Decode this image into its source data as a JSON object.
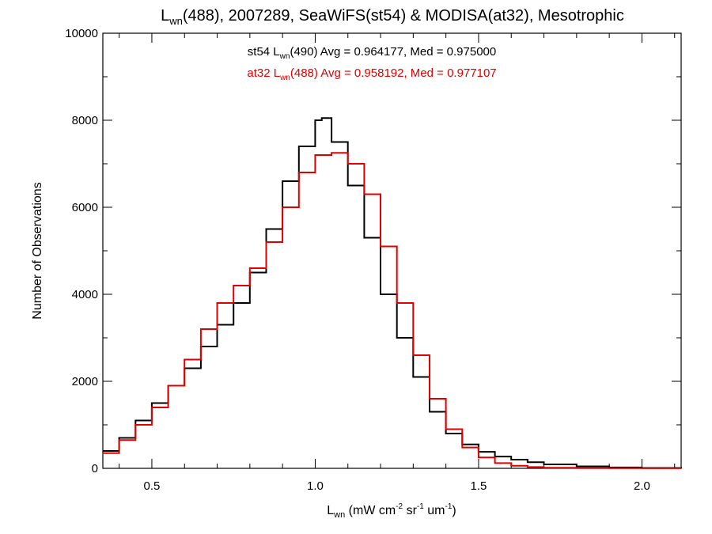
{
  "chart_data": {
    "type": "line",
    "title": {
      "main": "L",
      "sub": "wn",
      "rest": "(488), 2007289, SeaWiFS(st54) & MODISA(at32), Mesotrophic"
    },
    "xlabel": {
      "main": "L",
      "sub": "wn",
      "p1": " (mW cm",
      "sup1": "-2",
      "p2": " sr",
      "sup2": "-1",
      "p3": " um",
      "sup3": "-1",
      "p4": ")"
    },
    "ylabel": "Number of Observations",
    "xlim": [
      0.35,
      2.12
    ],
    "ylim": [
      0,
      10000
    ],
    "x_ticks": [
      {
        "value": 0.5,
        "label": "0.5"
      },
      {
        "value": 1.0,
        "label": "1.0"
      },
      {
        "value": 1.5,
        "label": "1.5"
      },
      {
        "value": 2.0,
        "label": "2.0"
      }
    ],
    "y_ticks": [
      {
        "value": 0,
        "label": "0"
      },
      {
        "value": 2000,
        "label": "2000"
      },
      {
        "value": 4000,
        "label": "4000"
      },
      {
        "value": 6000,
        "label": "6000"
      },
      {
        "value": 8000,
        "label": "8000"
      },
      {
        "value": 10000,
        "label": "10000"
      }
    ],
    "annotations": [
      {
        "pre": "st54 L",
        "sub": "wn",
        "post": "(490) Avg = 0.964177, Med = 0.975000",
        "color": "#000000"
      },
      {
        "pre": "at32 L",
        "sub": "wn",
        "post": "(488) Avg = 0.958192, Med = 0.977107",
        "color": "#e00000"
      }
    ],
    "series": [
      {
        "color": "#000000",
        "x": [
          0.35,
          0.4,
          0.45,
          0.5,
          0.55,
          0.6,
          0.65,
          0.7,
          0.75,
          0.8,
          0.85,
          0.9,
          0.95,
          1.0,
          1.02,
          1.05,
          1.1,
          1.15,
          1.2,
          1.25,
          1.3,
          1.35,
          1.4,
          1.45,
          1.5,
          1.55,
          1.6,
          1.65,
          1.7,
          1.8,
          1.9,
          2.0,
          2.12
        ],
        "values": [
          400,
          700,
          1100,
          1500,
          1900,
          2300,
          2800,
          3300,
          3800,
          4500,
          5500,
          6600,
          7400,
          8000,
          8050,
          7500,
          6500,
          5300,
          4000,
          3000,
          2100,
          1300,
          800,
          550,
          380,
          270,
          200,
          140,
          90,
          45,
          20,
          10,
          5
        ]
      },
      {
        "color": "#e00000",
        "x": [
          0.35,
          0.4,
          0.45,
          0.5,
          0.55,
          0.6,
          0.65,
          0.7,
          0.75,
          0.8,
          0.85,
          0.9,
          0.95,
          1.0,
          1.05,
          1.08,
          1.1,
          1.15,
          1.2,
          1.25,
          1.3,
          1.35,
          1.4,
          1.45,
          1.5,
          1.55,
          1.6,
          1.65,
          1.7,
          1.8,
          1.9,
          2.0,
          2.12
        ],
        "values": [
          350,
          650,
          1000,
          1400,
          1900,
          2500,
          3200,
          3800,
          4200,
          4600,
          5200,
          6000,
          6800,
          7200,
          7250,
          7250,
          7000,
          6300,
          5100,
          3800,
          2600,
          1600,
          900,
          480,
          250,
          120,
          60,
          30,
          15,
          8,
          4,
          2,
          1
        ]
      }
    ],
    "grid": false,
    "legend": "top-center"
  }
}
